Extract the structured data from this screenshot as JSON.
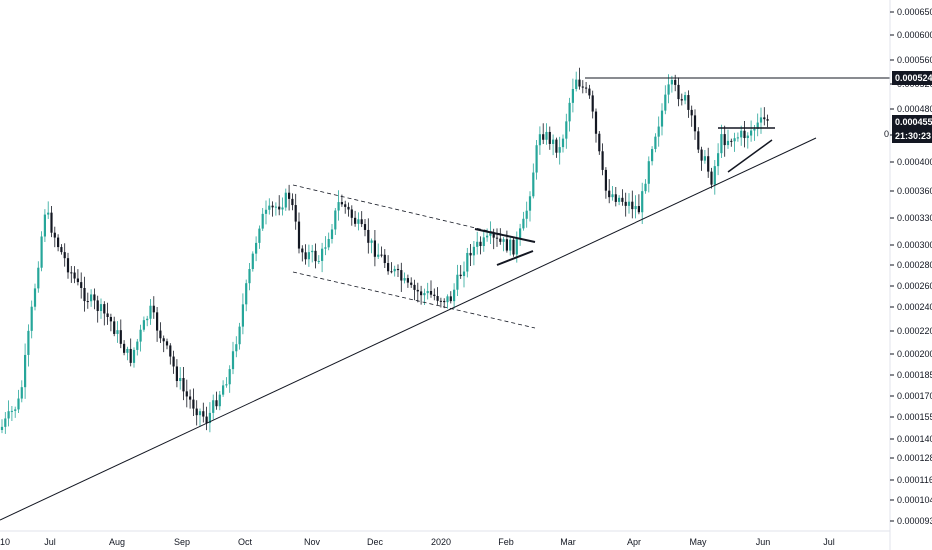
{
  "chart_data": {
    "type": "candlestick",
    "y_scale": "log",
    "ylim": [
      8.6e-05,
      6.8e-05
    ],
    "price_ticks": [
      "0.00065000",
      "0.00060000",
      "0.00056000",
      "0.00052000",
      "0.00048000",
      "0.00044000",
      "0.00040000",
      "0.00036000",
      "0.00033000",
      "0.00030000",
      "0.00028000",
      "0.00026000",
      "0.00024000",
      "0.00022000",
      "0.00020000",
      "0.00018500",
      "0.00017000",
      "0.00015500",
      "0.00014000",
      "0.00012800",
      "0.00011600",
      "0.00010400",
      "0.00009300"
    ],
    "time_labels": [
      "10",
      "Jul",
      "Aug",
      "Sep",
      "Oct",
      "Nov",
      "Dec",
      "2020",
      "Feb",
      "Mar",
      "Apr",
      "May",
      "Jun",
      "Jul"
    ],
    "last_price": "0.00045599",
    "countdown": "21:30:23",
    "resistance_label": "0.00052403",
    "clipped_tick_glyph": "0",
    "key_prices": [
      {
        "date": "start",
        "price": 0.00014
      },
      {
        "date": "Jul",
        "price": 0.00034
      },
      {
        "date": "Sep",
        "price": 0.00015
      },
      {
        "date": "Oct-end",
        "price": 0.00036
      },
      {
        "date": "Dec",
        "price": 0.00024
      },
      {
        "date": "Feb",
        "price": 0.0003
      },
      {
        "date": "Mar",
        "price": 0.00055
      },
      {
        "date": "Apr",
        "price": 0.00032
      },
      {
        "date": "Apr-end",
        "price": 0.0005
      },
      {
        "date": "May",
        "price": 0.00037
      },
      {
        "date": "Jun",
        "price": 0.00046
      }
    ],
    "colors": {
      "up": "#26a69a",
      "down": "#131722",
      "line": "#131722",
      "grid": "#e0e3eb"
    }
  }
}
